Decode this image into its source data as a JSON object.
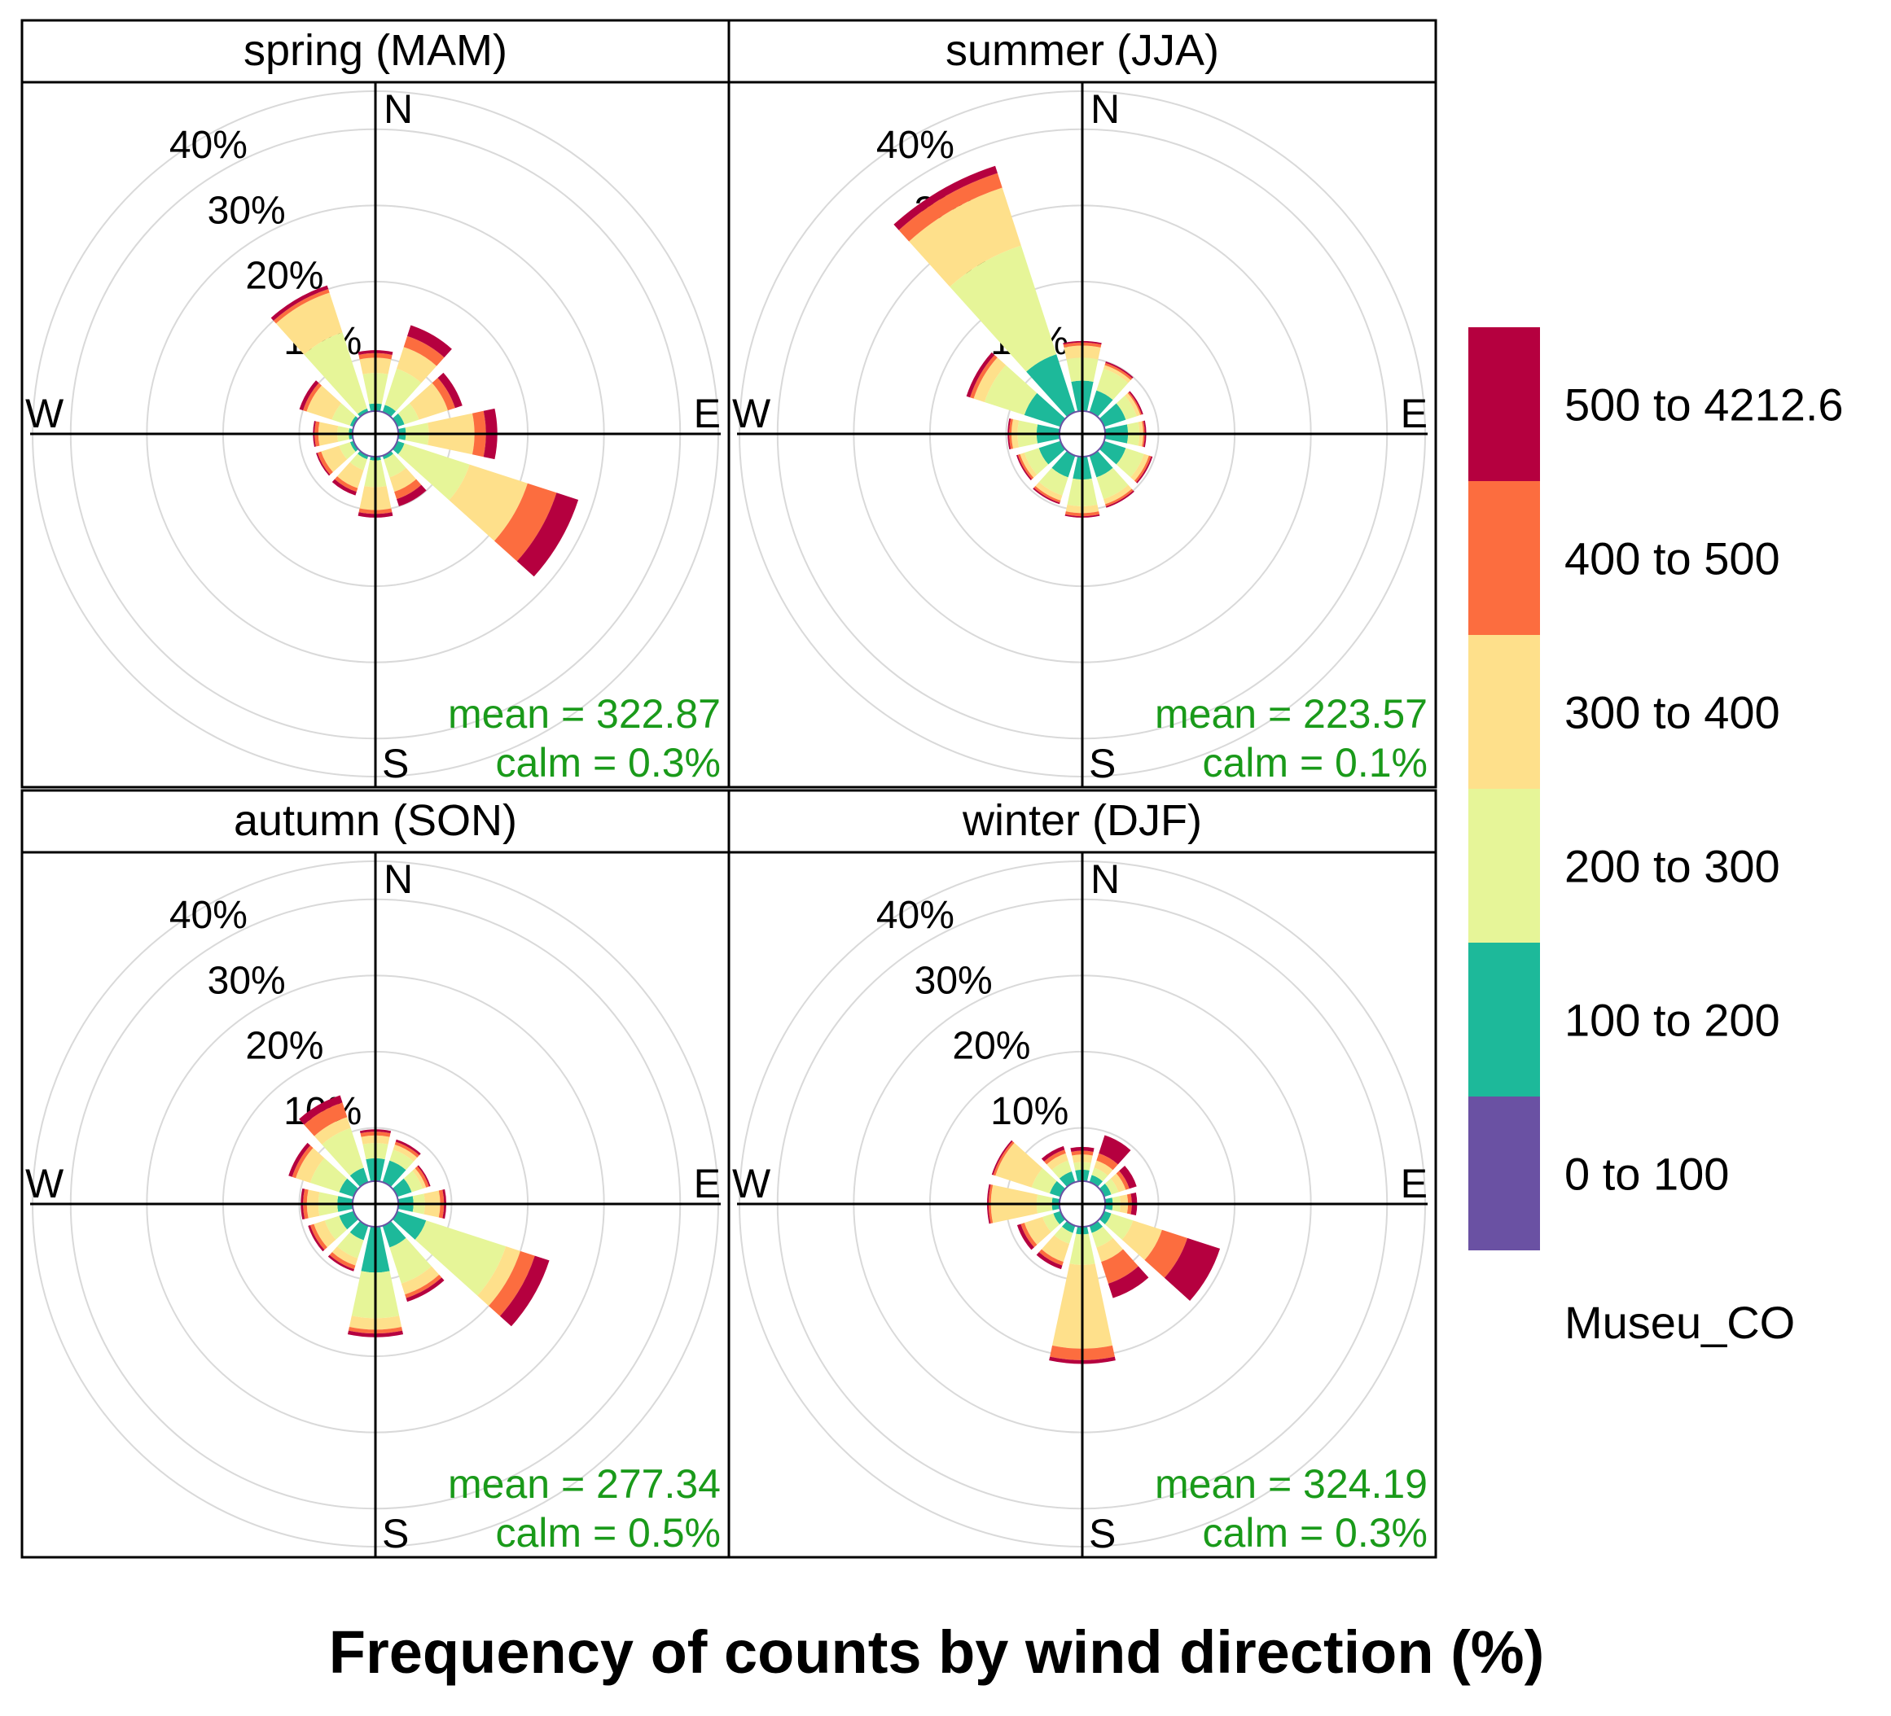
{
  "chart_data": {
    "type": "polar-stacked-bar",
    "title": "Frequency of counts by wind direction (%)",
    "radial_max": 45,
    "radial_ticks": [
      10,
      20,
      30,
      40,
      45
    ],
    "radial_labels": [
      "10%",
      "20%",
      "30%",
      "40%"
    ],
    "compass_labels": [
      "N",
      "E",
      "S",
      "W"
    ],
    "legend": {
      "title": "Museu_CO",
      "placement": "right",
      "bins": [
        {
          "label": "0 to 100",
          "color": "#6A51A3"
        },
        {
          "label": "100 to 200",
          "color": "#1DB99A"
        },
        {
          "label": "200 to 300",
          "color": "#E6F598"
        },
        {
          "label": "300 to 400",
          "color": "#FEE08B"
        },
        {
          "label": "400 to 500",
          "color": "#FC6D3F"
        },
        {
          "label": "500 to 4212.6",
          "color": "#B5003F"
        }
      ]
    },
    "directions_deg": [
      0,
      30,
      60,
      90,
      120,
      150,
      180,
      210,
      240,
      270,
      300,
      330
    ],
    "panels": [
      {
        "title": "spring (MAM)",
        "mean_text": "mean = 322.87",
        "calm_text": "calm = 0.3%",
        "series_note": "cumulative % per direction, bins 0-100 ... 500-4212.6",
        "cumulative": [
          [
            0,
            1,
            5,
            7,
            7.6,
            8
          ],
          [
            0,
            1,
            6,
            9,
            10.5,
            12
          ],
          [
            0,
            1,
            3,
            7,
            8,
            9
          ],
          [
            0,
            1,
            4,
            10,
            11.5,
            13
          ],
          [
            0,
            1,
            10,
            18,
            22,
            25
          ],
          [
            0,
            0.5,
            3,
            5,
            6,
            7
          ],
          [
            0,
            0.5,
            4,
            7,
            7.5,
            8
          ],
          [
            0,
            0.5,
            2,
            4.5,
            5,
            5.5
          ],
          [
            0,
            0.5,
            2,
            4.5,
            5,
            5.2
          ],
          [
            0,
            0.5,
            2,
            4.5,
            5,
            5.2
          ],
          [
            0,
            0.5,
            3,
            6.5,
            7,
            7.5
          ],
          [
            0,
            0.5,
            11,
            16.5,
            17,
            17.5
          ]
        ]
      },
      {
        "title": "summer (JJA)",
        "mean_text": "mean = 223.57",
        "calm_text": "calm = 0.1%",
        "cumulative": [
          [
            0,
            4,
            7,
            8.6,
            9,
            9.2
          ],
          [
            0,
            3,
            6,
            6.5,
            6.8,
            7
          ],
          [
            0,
            3,
            4.5,
            5,
            5.2,
            5.4
          ],
          [
            0,
            3,
            4.5,
            5,
            5.2,
            5.4
          ],
          [
            0,
            3,
            5.5,
            6.2,
            6.5,
            6.7
          ],
          [
            0,
            3,
            6,
            6.7,
            7,
            7.2
          ],
          [
            0,
            3,
            6.5,
            7.4,
            7.8,
            8
          ],
          [
            0,
            3,
            5.5,
            6.2,
            6.5,
            6.7
          ],
          [
            0,
            3,
            5,
            5.6,
            5.9,
            6.1
          ],
          [
            0,
            3,
            5.5,
            6.3,
            6.6,
            6.8
          ],
          [
            0,
            5,
            10.5,
            12,
            12.5,
            13
          ],
          [
            0,
            8,
            23,
            31,
            33,
            34
          ]
        ]
      },
      {
        "title": "autumn (SON)",
        "mean_text": "mean = 277.34",
        "calm_text": "calm = 0.5%",
        "cumulative": [
          [
            0,
            3,
            5,
            6,
            6.5,
            6.8
          ],
          [
            0,
            3,
            4.5,
            5.2,
            5.6,
            5.9
          ],
          [
            0,
            2,
            3.5,
            4,
            4.4,
            4.6
          ],
          [
            0,
            2,
            3.5,
            5.5,
            6,
            6.3
          ],
          [
            0,
            4,
            15,
            17,
            19,
            21
          ],
          [
            0,
            3,
            8,
            9.5,
            10,
            10.5
          ],
          [
            0,
            6,
            12,
            13.5,
            14,
            14.5
          ],
          [
            0,
            2,
            4.5,
            5.5,
            6,
            6.3
          ],
          [
            0,
            2,
            4,
            5.5,
            6,
            6.3
          ],
          [
            0,
            2,
            4.5,
            6,
            6.5,
            6.8
          ],
          [
            0,
            2,
            6,
            8,
            8.5,
            9
          ],
          [
            0,
            2,
            7.5,
            9,
            11,
            12
          ]
        ]
      },
      {
        "title": "winter (DJF)",
        "mean_text": "mean = 324.19",
        "calm_text": "calm = 0.3%",
        "cumulative": [
          [
            0,
            1.5,
            2.5,
            3.5,
            4,
            4.5
          ],
          [
            0,
            1,
            2,
            3,
            4,
            6.5
          ],
          [
            0,
            1,
            2,
            3,
            3.5,
            4.5
          ],
          [
            0,
            1,
            2,
            3,
            3.5,
            4.2
          ],
          [
            0,
            1,
            4,
            8,
            11.5,
            16
          ],
          [
            0,
            1,
            3,
            5,
            8,
            10
          ],
          [
            0,
            1,
            5,
            16,
            17.5,
            18
          ],
          [
            0,
            1,
            2.5,
            5,
            5.5,
            6
          ],
          [
            0,
            1,
            2.5,
            5,
            5.5,
            6
          ],
          [
            0,
            1,
            3,
            9,
            9.3,
            9.5
          ],
          [
            0,
            1.5,
            4,
            9,
            9.3,
            9.5
          ],
          [
            0,
            1.5,
            3,
            4,
            4.5,
            5
          ]
        ]
      }
    ]
  }
}
